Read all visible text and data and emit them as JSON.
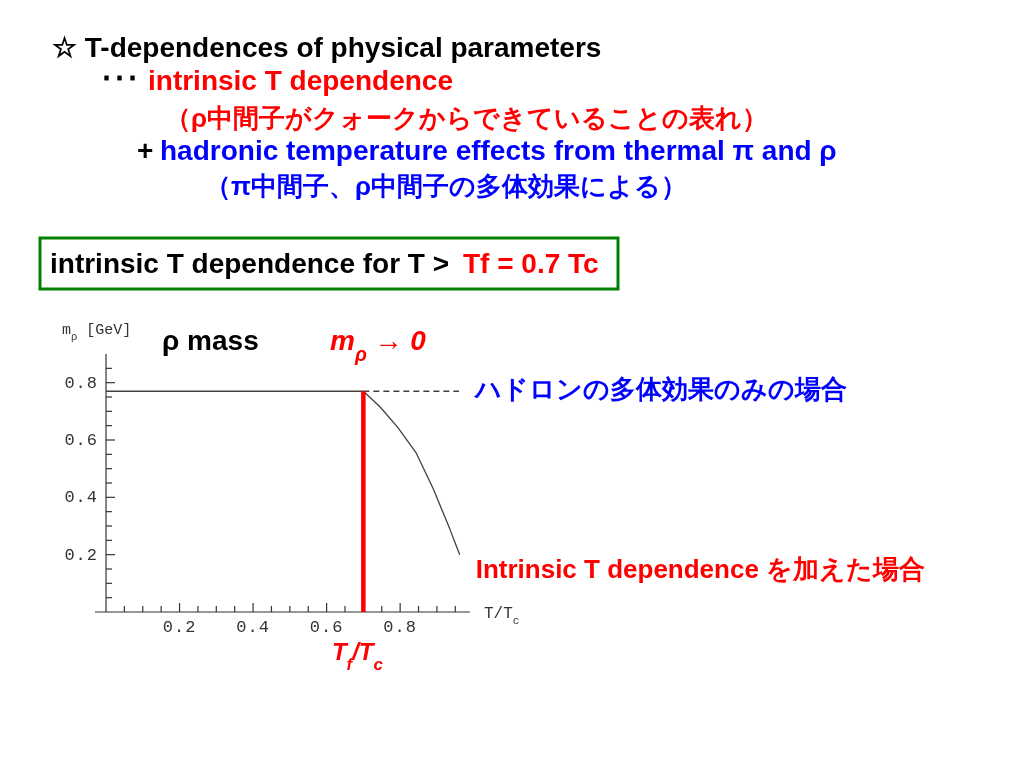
{
  "chart_data": {
    "type": "line",
    "title": "☆ T-dependences of physical parameters",
    "xlabel": "T/T$_{c}$",
    "ylabel": "m$_{ρ}$ [GeV]",
    "annotations": [
      "･･･",
      "intrinsic T dependence",
      "（ρ中間子がクォークからできていることの表れ）",
      "+",
      "hadronic temperature effects from thermal π and ρ",
      "（π中間子、ρ中間子の多体効果による）",
      "intrinsic T dependence for T >",
      "Tf = 0.7 Tc",
      "ρ mass",
      "m$_{ρ}$ → 0",
      {
        "text": "T$_{f}$/T$_{c}$",
        "x": 0.7,
        "y": 0
      }
    ],
    "xlim": [
      0,
      0.99
    ],
    "ylim": [
      0,
      0.9
    ],
    "xticks": [
      {
        "value": 0.05,
        "label": null
      },
      {
        "value": 0.1,
        "label": null
      },
      {
        "value": 0.15,
        "label": null
      },
      0.2,
      {
        "value": 0.25,
        "label": null
      },
      {
        "value": 0.3,
        "label": null
      },
      {
        "value": 0.35,
        "label": null
      },
      0.4,
      {
        "value": 0.45,
        "label": null
      },
      {
        "value": 0.5,
        "label": null
      },
      {
        "value": 0.55,
        "label": null
      },
      0.6,
      {
        "value": 0.65,
        "label": null
      },
      {
        "value": 0.7,
        "label": null
      },
      {
        "value": 0.75,
        "label": null
      },
      0.8,
      {
        "value": 0.85,
        "label": null
      },
      {
        "value": 0.9,
        "label": null
      },
      {
        "value": 0.95,
        "label": null
      }
    ],
    "yticks": [
      {
        "value": 0.05,
        "label": null
      },
      {
        "value": 0.1,
        "label": null
      },
      {
        "value": 0.15,
        "label": null
      },
      0.2,
      {
        "value": 0.25,
        "label": null
      },
      {
        "value": 0.3,
        "label": null
      },
      {
        "value": 0.35,
        "label": null
      },
      0.4,
      {
        "value": 0.45,
        "label": null
      },
      {
        "value": 0.5,
        "label": null
      },
      {
        "value": 0.55,
        "label": null
      },
      0.6,
      {
        "value": 0.65,
        "label": null
      },
      {
        "value": 0.7,
        "label": null
      },
      {
        "value": 0.75,
        "label": null
      },
      0.8,
      {
        "value": 0.85,
        "label": null
      }
    ],
    "series": [
      {
        "name": "Intrinsic T dependence を加えた場合",
        "color": "#404040",
        "line_style": "solid",
        "x": [
          0,
          0.7,
          0.745,
          0.793,
          0.844,
          0.89,
          0.935,
          0.962
        ],
        "values": [
          0.77,
          0.77,
          0.716,
          0.645,
          0.554,
          0.43,
          0.29,
          0.2
        ]
      },
      {
        "name": "ハドロンの多体効果のみの場合",
        "color": "#404040",
        "line_style": "dashed",
        "x": [
          0.7,
          0.96
        ],
        "values": [
          0.77,
          0.77
        ]
      },
      {
        "color": "#ff0000",
        "line_style": "solid",
        "x": [
          0.7,
          0.7
        ],
        "values": [
          0,
          0.77
        ]
      }
    ]
  }
}
